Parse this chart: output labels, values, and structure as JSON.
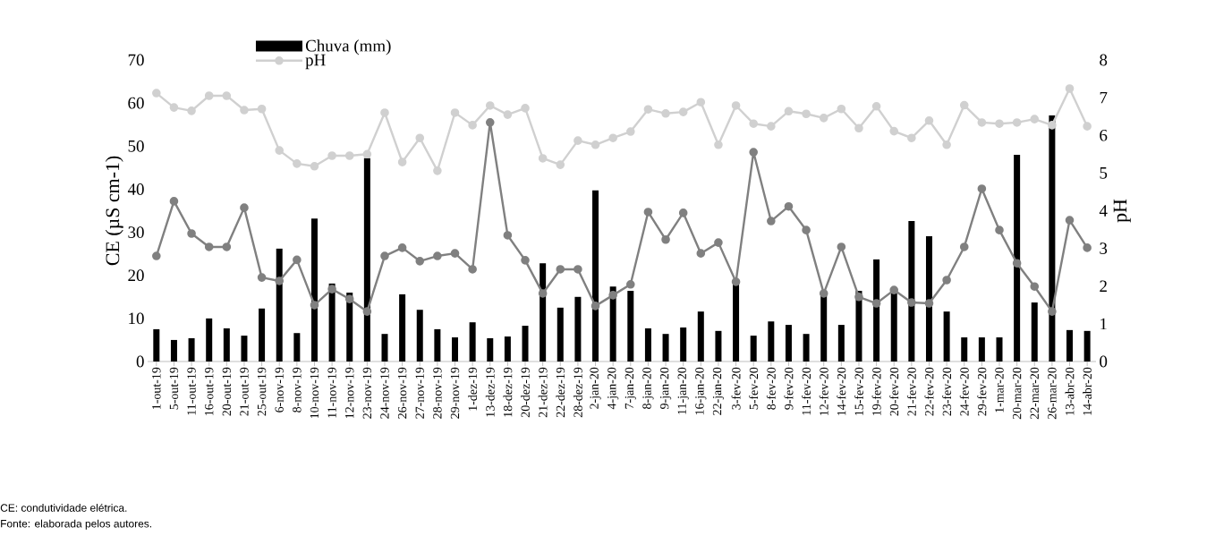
{
  "chart_data": {
    "type": "bar",
    "categories": [
      "1-out-19",
      "5-out-19",
      "11-out-19",
      "16-out-19",
      "20-out-19",
      "21-out-19",
      "25-out-19",
      "6-nov-19",
      "8-nov-19",
      "10-nov-19",
      "11-nov-19",
      "12-nov-19",
      "23-nov-19",
      "24-nov-19",
      "26-nov-19",
      "27-nov-19",
      "28-nov-19",
      "29-nov-19",
      "1-dez-19",
      "13-dez-19",
      "18-dez-19",
      "20-dez-19",
      "21-dez-19",
      "22-dez-19",
      "28-dez-19",
      "2-jan-20",
      "4-jan-20",
      "7-jan-20",
      "8-jan-20",
      "9-jan-20",
      "11-jan-20",
      "16-jan-20",
      "22-jan-20",
      "3-fev-20",
      "5-fev-20",
      "8-fev-20",
      "9-fev-20",
      "11-fev-20",
      "12-fev-20",
      "14-fev-20",
      "15-fev-20",
      "19-fev-20",
      "20-fev-20",
      "21-fev-20",
      "22-fev-20",
      "23-fev-20",
      "24-fev-20",
      "29-fev-20",
      "1-mar-20",
      "20-mar-20",
      "22-mar-20",
      "26-mar-20",
      "13-abr-20",
      "14-abr-20"
    ],
    "series": [
      {
        "name": "Chuva (mm)",
        "color": "#000000",
        "values": [
          7.5,
          5.0,
          5.4,
          10.0,
          7.7,
          6.0,
          12.3,
          26.2,
          6.6,
          33.2,
          18.1,
          16.0,
          47.2,
          6.4,
          15.6,
          12.0,
          7.5,
          5.6,
          9.1,
          5.4,
          5.8,
          8.3,
          22.8,
          12.5,
          15.0,
          39.7,
          17.4,
          16.4,
          7.7,
          6.4,
          7.9,
          11.6,
          7.1,
          18.1,
          6.0,
          9.3,
          8.5,
          6.4,
          15.8,
          8.5,
          16.4,
          23.7,
          15.8,
          32.6,
          29.1,
          11.6,
          5.6,
          5.6,
          5.6,
          48.0,
          13.7,
          57.1,
          7.3,
          7.1
        ]
      },
      {
        "type": "line",
        "color": "#808080",
        "values": [
          24.5,
          37.2,
          29.7,
          26.6,
          26.6,
          35.7,
          19.5,
          18.7,
          23.6,
          13.1,
          16.8,
          14.5,
          11.6,
          24.5,
          26.4,
          23.3,
          24.5,
          25.1,
          21.4,
          55.5,
          29.3,
          23.5,
          15.8,
          21.4,
          21.4,
          12.9,
          15.4,
          17.9,
          34.7,
          28.3,
          34.5,
          25.1,
          27.6,
          18.5,
          48.6,
          32.6,
          36.0,
          30.5,
          15.8,
          26.6,
          15.0,
          13.5,
          16.6,
          13.7,
          13.5,
          18.9,
          26.6,
          40.1,
          30.5,
          22.8,
          17.4,
          11.6,
          32.8,
          26.4
        ]
      },
      {
        "name": "pH",
        "type": "line",
        "axis": "y2",
        "color": "#d0d0d0",
        "values": [
          7.12,
          6.74,
          6.65,
          7.05,
          7.05,
          6.67,
          6.7,
          5.6,
          5.25,
          5.18,
          5.46,
          5.46,
          5.5,
          6.6,
          5.29,
          5.93,
          5.06,
          6.6,
          6.27,
          6.79,
          6.55,
          6.72,
          5.39,
          5.22,
          5.86,
          5.75,
          5.93,
          6.1,
          6.69,
          6.58,
          6.62,
          6.88,
          5.75,
          6.79,
          6.31,
          6.24,
          6.64,
          6.57,
          6.46,
          6.7,
          6.19,
          6.77,
          6.11,
          5.93,
          6.39,
          5.75,
          6.8,
          6.34,
          6.31,
          6.34,
          6.43,
          6.27,
          7.24,
          6.24
        ]
      }
    ],
    "ylabel": "CE (µS cm-1)",
    "y2label": "pH",
    "ylim": [
      0,
      70
    ],
    "yticks": [
      0,
      10,
      20,
      30,
      40,
      50,
      60,
      70
    ],
    "y2lim": [
      0,
      8
    ],
    "y2ticks": [
      0,
      1,
      2,
      3,
      4,
      5,
      6,
      7,
      8
    ],
    "legend": "top left",
    "marker": "circle",
    "grid": false,
    "annotations": [
      "CE: condutividade elétrica.",
      "Fonte: elaborada pelos autores."
    ]
  }
}
